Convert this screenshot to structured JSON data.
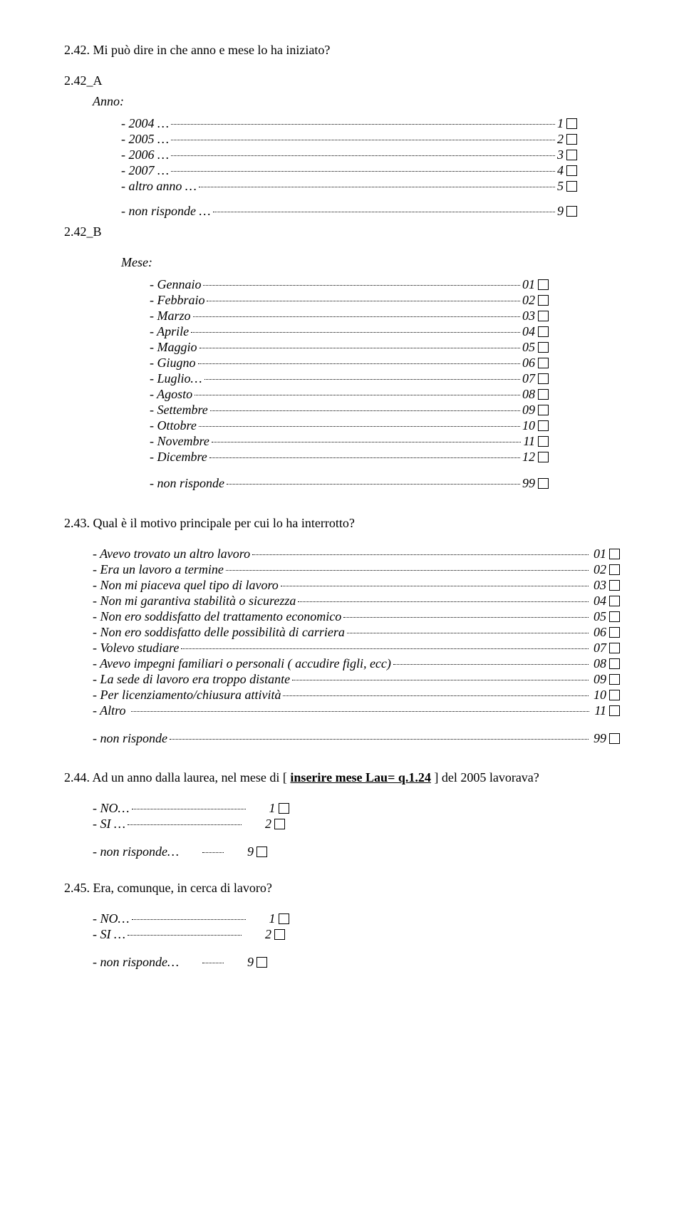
{
  "q242": {
    "title": "2.42.  Mi  può dire in che anno e mese lo ha iniziato?"
  },
  "q242a": {
    "label": "2.42_A",
    "sub": "Anno:",
    "opts": [
      {
        "label": "- 2004 …",
        "num": "1"
      },
      {
        "label": "- 2005 …",
        "num": "2"
      },
      {
        "label": "- 2006 …",
        "num": "3"
      },
      {
        "label": "- 2007 …",
        "num": "4"
      },
      {
        "label": "- altro anno …",
        "num": "5"
      }
    ],
    "nr": {
      "label": "- non risponde …",
      "num": "9"
    }
  },
  "q242b": {
    "label": "2.42_B",
    "sub": "Mese:",
    "opts": [
      {
        "label": "- Gennaio",
        "num": "01"
      },
      {
        "label": "- Febbraio",
        "num": "02"
      },
      {
        "label": "- Marzo",
        "num": "03"
      },
      {
        "label": "- Aprile",
        "num": "04"
      },
      {
        "label": "- Maggio",
        "num": "05"
      },
      {
        "label": "- Giugno",
        "num": "06"
      },
      {
        "label": "- Luglio…",
        "num": "07"
      },
      {
        "label": "- Agosto",
        "num": "08"
      },
      {
        "label": "- Settembre",
        "num": "09"
      },
      {
        "label": "- Ottobre",
        "num": "10"
      },
      {
        "label": "- Novembre",
        "num": "11"
      },
      {
        "label": "- Dicembre",
        "num": "12"
      }
    ],
    "nr": {
      "label": "- non risponde",
      "num": "99"
    }
  },
  "q243": {
    "title_num": "2.43.",
    "title_text": " Qual è il motivo principale per cui lo ha interrotto?",
    "opts": [
      {
        "label": "- Avevo trovato un altro lavoro",
        "num": " 01"
      },
      {
        "label": "- Era un lavoro a termine",
        "num": " 02"
      },
      {
        "label": "- Non mi piaceva quel tipo di lavoro",
        "num": " 03"
      },
      {
        "label": "- Non mi garantiva stabilità o sicurezza",
        "num": " 04"
      },
      {
        "label": "- Non ero soddisfatto del trattamento economico",
        "num": " 05"
      },
      {
        "label": "- Non ero soddisfatto delle possibilità di carriera",
        "num": " 06"
      },
      {
        "label": "- Volevo studiare",
        "num": " 07"
      },
      {
        "label": "- Avevo impegni familiari o personali ( accudire figli, ecc)",
        "num": " 08"
      },
      {
        "label": "- La sede di lavoro era troppo distante",
        "num": " 09"
      },
      {
        "label": "- Per licenziamento/chiusura attività",
        "num": " 10"
      },
      {
        "label": "- Altro ",
        "num": " 11"
      }
    ],
    "nr": {
      "label": "- non risponde",
      "num": " 99"
    }
  },
  "q244": {
    "title_num": "2.44.",
    "title_pre": " Ad un anno dalla laurea, nel mese di [ ",
    "title_underlined": "inserire mese Lau= q.1.24",
    "title_post": " ] del 2005 lavorava?",
    "opts": [
      {
        "label": "- NO…",
        "num": "1"
      },
      {
        "label": "- SI …",
        "num": "2"
      }
    ],
    "nr": {
      "label": "- non risponde…",
      "num": "9"
    }
  },
  "q245": {
    "title_num": "2.45.",
    "title_text": "  Era, comunque, in cerca di lavoro?",
    "opts": [
      {
        "label": "- NO…",
        "num": "1"
      },
      {
        "label": "- SI …",
        "num": "2"
      }
    ],
    "nr": {
      "label": "- non risponde…",
      "num": "9"
    }
  }
}
